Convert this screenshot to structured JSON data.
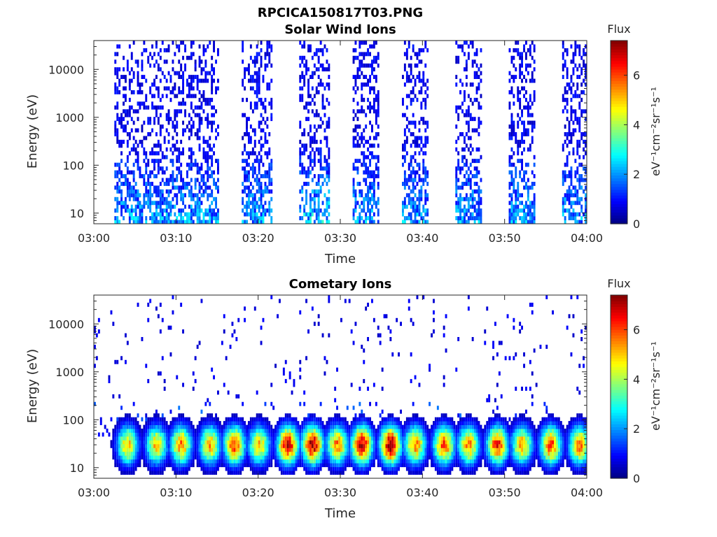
{
  "figure_title": "RPCICA150817T03.PNG",
  "colorbar": {
    "title": "Flux",
    "label": "eV⁻¹cm⁻²sr⁻¹s⁻¹",
    "ticks": [
      "0",
      "2",
      "4",
      "6"
    ],
    "range": [
      0,
      7.4
    ],
    "colormap": "jet"
  },
  "chart_data": [
    {
      "type": "heatmap",
      "title": "Solar Wind Ions",
      "xlabel": "Time",
      "ylabel": "Energy (eV)",
      "x_ticks": [
        "03:00",
        "03:10",
        "03:20",
        "03:30",
        "03:40",
        "03:50",
        "04:00"
      ],
      "y_ticks": [
        "10",
        "100",
        "1000",
        "10000"
      ],
      "xlim": [
        "03:00",
        "04:00"
      ],
      "ylim": [
        6,
        40000
      ],
      "yscale": "log",
      "bursts": [
        {
          "start": "03:02.5",
          "end": "03:15",
          "flux_low_energy": 2.0,
          "flux_high_energy": 0.8
        },
        {
          "start": "03:18",
          "end": "03:21.5",
          "flux_low_energy": 2.0,
          "flux_high_energy": 0.8
        },
        {
          "start": "03:25",
          "end": "03:28.5",
          "flux_low_energy": 2.4,
          "flux_high_energy": 0.8
        },
        {
          "start": "03:31.5",
          "end": "03:34.5",
          "flux_low_energy": 2.0,
          "flux_high_energy": 0.8
        },
        {
          "start": "03:37.5",
          "end": "03:40.5",
          "flux_low_energy": 2.0,
          "flux_high_energy": 0.8
        },
        {
          "start": "03:44",
          "end": "03:47",
          "flux_low_energy": 2.0,
          "flux_high_energy": 0.8
        },
        {
          "start": "03:50.5",
          "end": "03:53.5",
          "flux_low_energy": 2.0,
          "flux_high_energy": 0.8
        },
        {
          "start": "03:57",
          "end": "04:00",
          "flux_low_energy": 2.0,
          "flux_high_energy": 0.8
        }
      ]
    },
    {
      "type": "heatmap",
      "title": "Cometary Ions",
      "xlabel": "Time",
      "ylabel": "Energy (eV)",
      "x_ticks": [
        "03:00",
        "03:10",
        "03:20",
        "03:30",
        "03:40",
        "03:50",
        "04:00"
      ],
      "y_ticks": [
        "10",
        "100",
        "1000",
        "10000"
      ],
      "xlim": [
        "03:00",
        "04:00"
      ],
      "ylim": [
        6,
        40000
      ],
      "yscale": "log",
      "peak_energy_eV": 30,
      "bursts": [
        {
          "center": "03:04",
          "peak_flux": 5.0
        },
        {
          "center": "03:07.5",
          "peak_flux": 5.0
        },
        {
          "center": "03:10.5",
          "peak_flux": 5.5
        },
        {
          "center": "03:14",
          "peak_flux": 5.2
        },
        {
          "center": "03:17",
          "peak_flux": 6.0
        },
        {
          "center": "03:20",
          "peak_flux": 5.0
        },
        {
          "center": "03:23.5",
          "peak_flux": 6.8
        },
        {
          "center": "03:26.5",
          "peak_flux": 7.0
        },
        {
          "center": "03:29.5",
          "peak_flux": 5.5
        },
        {
          "center": "03:32.5",
          "peak_flux": 7.0
        },
        {
          "center": "03:36",
          "peak_flux": 7.2
        },
        {
          "center": "03:39",
          "peak_flux": 5.5
        },
        {
          "center": "03:42.5",
          "peak_flux": 6.0
        },
        {
          "center": "03:45.5",
          "peak_flux": 5.5
        },
        {
          "center": "03:49",
          "peak_flux": 6.2
        },
        {
          "center": "03:52",
          "peak_flux": 5.2
        },
        {
          "center": "03:55.5",
          "peak_flux": 6.0
        },
        {
          "center": "03:59",
          "peak_flux": 5.5
        }
      ]
    }
  ]
}
